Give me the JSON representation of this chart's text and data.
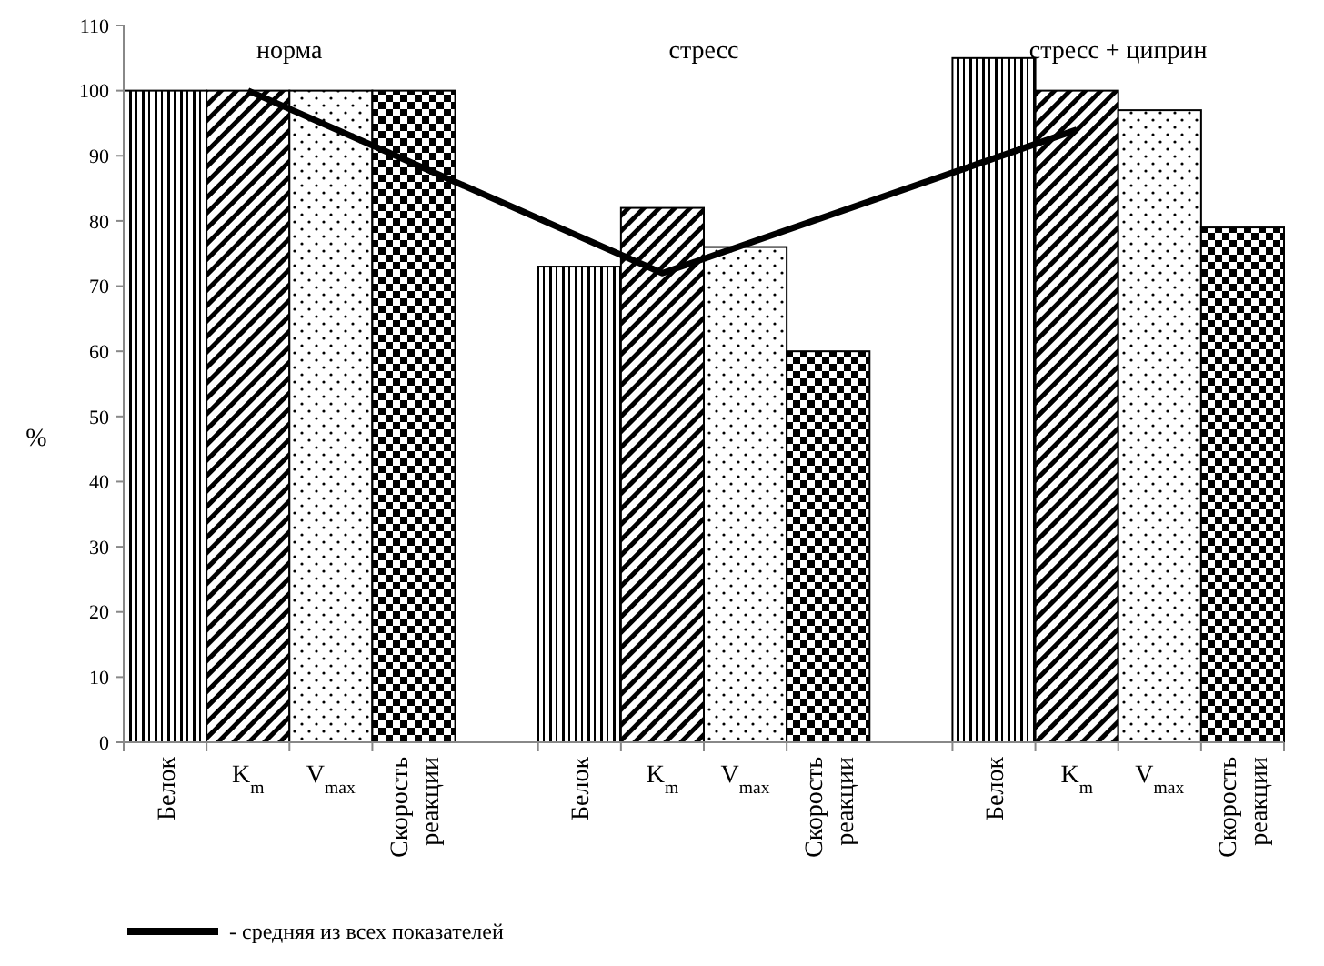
{
  "chart_data": {
    "type": "bar",
    "categories": [
      "Белок",
      "K$_{m}$",
      "V$_{max}$",
      "Скорость реакции",
      "Белок",
      "K$_{m}$",
      "V$_{max}$",
      "Скорость реакции",
      "Белок",
      "K$_{m}$",
      "V$_{max}$",
      "Скорость реакции"
    ],
    "ylabel": "%",
    "ylim": [
      0,
      110
    ],
    "yticks": [
      0,
      10,
      20,
      30,
      40,
      50,
      60,
      70,
      80,
      90,
      100,
      110
    ],
    "grid": false,
    "legend": "bottom left",
    "annotations": [
      "норма",
      "стресс",
      "стресс + циприн"
    ],
    "series": [
      {
        "color": "#000000",
        "values": [
          100,
          100,
          100,
          100,
          73,
          82,
          76,
          60,
          105,
          100,
          97,
          79
        ]
      },
      {
        "type": "line",
        "name": "- средняя из всех показателей",
        "color": "#000000",
        "values": [
          null,
          100,
          null,
          null,
          null,
          72,
          null,
          null,
          null,
          94,
          null,
          null
        ]
      }
    ]
  }
}
